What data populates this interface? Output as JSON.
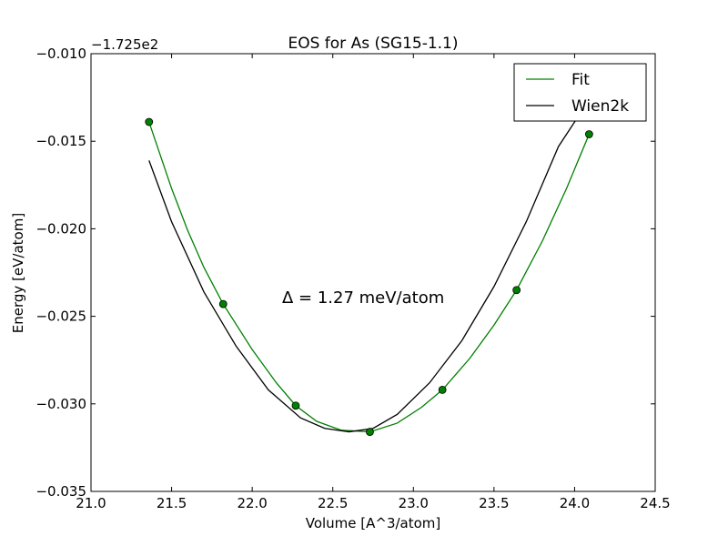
{
  "chart_data": {
    "type": "line",
    "title": "EOS for As (SG15-1.1)",
    "xlabel": "Volume [A^3/atom]",
    "ylabel": "Energy [eV/atom]",
    "y_offset_label": "−1.725e2",
    "xlim": [
      21.0,
      24.5
    ],
    "ylim": [
      -0.035,
      -0.01
    ],
    "x_ticks": [
      "21.0",
      "21.5",
      "22.0",
      "22.5",
      "23.0",
      "23.5",
      "24.0",
      "24.5"
    ],
    "y_ticks": [
      "−0.010",
      "−0.015",
      "−0.020",
      "−0.025",
      "−0.030",
      "−0.035"
    ],
    "grid": false,
    "legend_position": "top-right",
    "annotation": "Δ = 1.27 meV/atom",
    "points": {
      "x": [
        21.36,
        21.82,
        22.27,
        22.73,
        23.18,
        23.64,
        24.09
      ],
      "y": [
        -0.0139,
        -0.0243,
        -0.0301,
        -0.0316,
        -0.0292,
        -0.0235,
        -0.0146
      ]
    },
    "series": [
      {
        "name": "Fit",
        "color": "#008000",
        "x": [
          21.36,
          21.5,
          21.6,
          21.7,
          21.82,
          22.0,
          22.15,
          22.27,
          22.4,
          22.55,
          22.73,
          22.9,
          23.05,
          23.18,
          23.35,
          23.5,
          23.64,
          23.8,
          23.95,
          24.09
        ],
        "y": [
          -0.0139,
          -0.0177,
          -0.0201,
          -0.0222,
          -0.0243,
          -0.0269,
          -0.0288,
          -0.0301,
          -0.031,
          -0.0315,
          -0.0316,
          -0.0311,
          -0.0302,
          -0.0292,
          -0.0274,
          -0.0255,
          -0.0235,
          -0.0207,
          -0.0177,
          -0.0146
        ]
      },
      {
        "name": "Wien2k",
        "color": "#000000",
        "x": [
          21.36,
          21.5,
          21.7,
          21.9,
          22.1,
          22.3,
          22.45,
          22.6,
          22.75,
          22.9,
          23.1,
          23.3,
          23.5,
          23.7,
          23.9,
          24.05
        ],
        "y": [
          -0.0161,
          -0.0196,
          -0.0236,
          -0.0267,
          -0.0292,
          -0.0308,
          -0.0314,
          -0.0316,
          -0.0314,
          -0.0306,
          -0.0288,
          -0.0264,
          -0.0233,
          -0.0196,
          -0.0153,
          -0.0132
        ]
      }
    ]
  }
}
